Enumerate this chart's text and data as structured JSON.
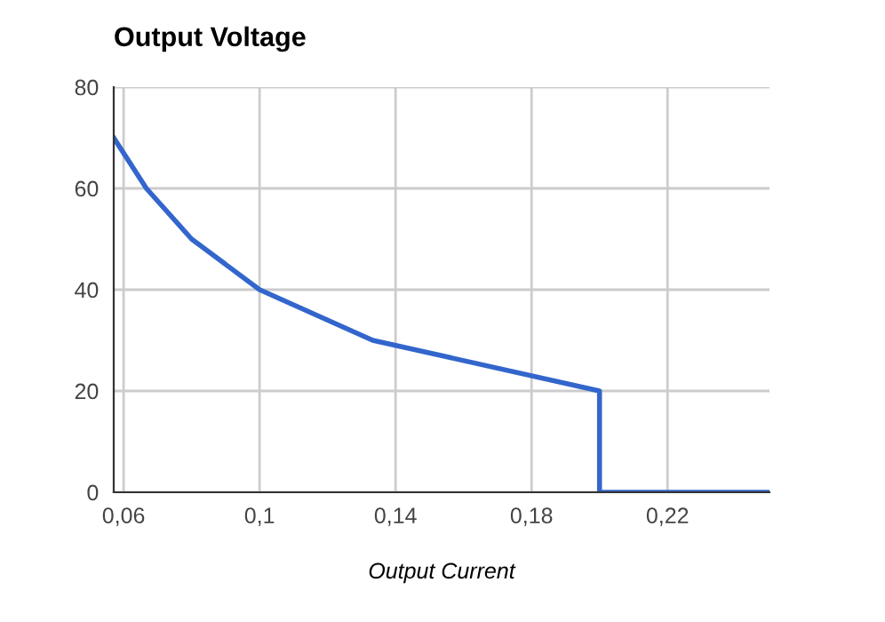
{
  "chart_data": {
    "type": "line",
    "title": "Output Voltage",
    "xlabel": "Output Current",
    "x": [
      0.0571,
      0.0667,
      0.08,
      0.1,
      0.1333,
      0.2,
      0.2,
      0.25
    ],
    "series": [
      {
        "color": "#3366cc",
        "values": [
          70,
          60,
          50,
          40,
          30,
          20,
          0,
          0
        ]
      }
    ],
    "xlim": [
      0.0571,
      0.25
    ],
    "ylim": [
      0,
      80
    ],
    "xticks": [
      {
        "value": 0.06,
        "label": "0,06"
      },
      {
        "value": 0.1,
        "label": "0,1"
      },
      {
        "value": 0.14,
        "label": "0,14"
      },
      {
        "value": 0.18,
        "label": "0,18"
      },
      {
        "value": 0.22,
        "label": "0,22"
      }
    ],
    "yticks": [
      0,
      20,
      40,
      60,
      80
    ],
    "grid": true
  }
}
